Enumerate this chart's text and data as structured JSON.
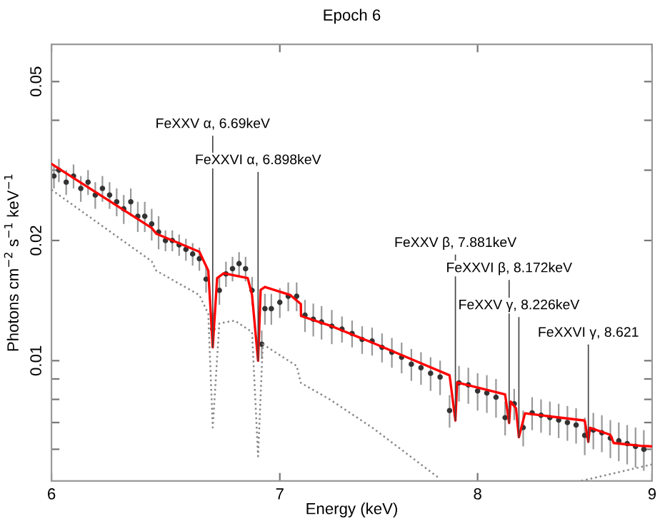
{
  "chart_data": {
    "type": "line",
    "title": "Epoch 6",
    "xlabel": "Energy (keV)",
    "ylabel": "Photons cm$^{−2}$ s$^{−1}$ keV$^{−1}$",
    "log": "xy",
    "grid": false,
    "legend": false,
    "xlim": [
      6,
      9
    ],
    "xticks": [
      6,
      7,
      8,
      9
    ],
    "ylim": [
      0.005,
      0.062
    ],
    "yticks": [
      {
        "value": 0.006,
        "label": null
      },
      {
        "value": 0.007,
        "label": null
      },
      {
        "value": 0.008,
        "label": null
      },
      {
        "value": 0.009,
        "label": null
      },
      0.01,
      0.02,
      {
        "value": 0.03,
        "label": null
      },
      {
        "value": 0.04,
        "label": null
      },
      0.05
    ],
    "series": [
      {
        "type": "scatter",
        "color": "#333333",
        "marker": "circle",
        "x": [
          6.01,
          6.03,
          6.06,
          6.09,
          6.12,
          6.15,
          6.18,
          6.21,
          6.24,
          6.27,
          6.3,
          6.33,
          6.36,
          6.39,
          6.42,
          6.45,
          6.48,
          6.51,
          6.54,
          6.57,
          6.6,
          6.63,
          6.66,
          6.69,
          6.72,
          6.75,
          6.78,
          6.81,
          6.84,
          6.87,
          6.915,
          6.93,
          6.96,
          7.0,
          7.04,
          7.08,
          7.12,
          7.16,
          7.2,
          7.25,
          7.3,
          7.35,
          7.4,
          7.45,
          7.5,
          7.55,
          7.6,
          7.65,
          7.7,
          7.75,
          7.8,
          7.85,
          7.9,
          7.95,
          8.0,
          8.05,
          8.1,
          8.15,
          8.2,
          8.25,
          8.3,
          8.35,
          8.4,
          8.45,
          8.5,
          8.55,
          8.6,
          8.65,
          8.7,
          8.75,
          8.8,
          8.85,
          8.9,
          8.95
        ],
        "values": [
          0.029,
          0.03,
          0.028,
          0.029,
          0.027,
          0.028,
          0.026,
          0.027,
          0.026,
          0.025,
          0.024,
          0.025,
          0.023,
          0.023,
          0.022,
          0.021,
          0.02,
          0.02,
          0.0195,
          0.019,
          0.0185,
          0.018,
          0.016,
          0.012,
          0.015,
          0.0165,
          0.017,
          0.0175,
          0.017,
          0.015,
          0.011,
          0.0135,
          0.0135,
          0.014,
          0.0145,
          0.0145,
          0.013,
          0.0127,
          0.0125,
          0.0122,
          0.012,
          0.0117,
          0.0113,
          0.0112,
          0.0108,
          0.0105,
          0.0102,
          0.0098,
          0.0096,
          0.0093,
          0.0091,
          0.0075,
          0.0088,
          0.0087,
          0.0084,
          0.0083,
          0.0081,
          0.0072,
          0.0078,
          0.0068,
          0.0074,
          0.0073,
          0.0072,
          0.0071,
          0.007,
          0.0069,
          0.0065,
          0.0067,
          0.0066,
          0.0064,
          0.0063,
          0.0062,
          0.0061,
          0.006
        ],
        "errors": [
          0.002,
          0.002,
          0.002,
          0.002,
          0.002,
          0.002,
          0.002,
          0.002,
          0.002,
          0.002,
          0.002,
          0.002,
          0.002,
          0.002,
          0.002,
          0.002,
          0.0012,
          0.0012,
          0.0012,
          0.0012,
          0.0012,
          0.0012,
          0.0012,
          0.0012,
          0.0012,
          0.0012,
          0.0012,
          0.0012,
          0.0012,
          0.0012,
          0.0009,
          0.0012,
          0.0012,
          0.0012,
          0.0012,
          0.0012,
          0.0012,
          0.0012,
          0.0012,
          0.0012,
          0.0009,
          0.0009,
          0.0009,
          0.0009,
          0.0009,
          0.0009,
          0.0009,
          0.0009,
          0.0009,
          0.0009,
          0.0009,
          0.0007,
          0.0009,
          0.0009,
          0.0009,
          0.0009,
          0.0009,
          0.0007,
          0.0007,
          0.0007,
          0.0007,
          0.0007,
          0.0007,
          0.0007,
          0.0007,
          0.0007,
          0.0007,
          0.0007,
          0.0007,
          0.0007,
          0.0007,
          0.0007,
          0.0007,
          0.0007
        ]
      },
      {
        "color": "#ff0000",
        "line_style": "solid",
        "x": [
          6.0,
          6.42,
          6.44,
          6.63,
          6.67,
          6.69,
          6.71,
          6.74,
          6.85,
          6.87,
          6.898,
          6.91,
          6.93,
          7.05,
          7.1,
          7.101,
          7.24,
          7.45,
          7.85,
          7.881,
          7.89,
          8.15,
          8.172,
          8.18,
          8.21,
          8.226,
          8.26,
          8.6,
          8.621,
          8.63,
          8.75,
          8.77,
          8.93,
          9.0
        ],
        "values": [
          0.0311,
          0.0215,
          0.0208,
          0.01874,
          0.0168,
          0.0108,
          0.0161,
          0.01655,
          0.0161,
          0.0146,
          0.01,
          0.01505,
          0.0153,
          0.0146,
          0.01386,
          0.01294,
          0.01225,
          0.0111,
          0.00919,
          0.00708,
          0.00882,
          0.00823,
          0.00698,
          0.0079,
          0.0076,
          0.00643,
          0.00738,
          0.00708,
          0.00626,
          0.00679,
          0.00652,
          0.00622,
          0.00612,
          0.0061
        ]
      },
      {
        "color": "#888888",
        "line_style": "dotted",
        "x": [
          6.0,
          6.42,
          6.44,
          6.63,
          6.67,
          6.69,
          6.72,
          6.79,
          6.87,
          6.898,
          6.92,
          7.08,
          7.1,
          7.24,
          7.45,
          7.79,
          7.85,
          8.58,
          9.0
        ],
        "values": [
          0.0268,
          0.01774,
          0.0168,
          0.0146,
          0.0131,
          0.0068,
          0.0124,
          0.0126,
          0.0118,
          0.00576,
          0.011,
          0.0097,
          0.0088,
          0.008,
          0.0068,
          0.0051,
          null,
          0.005,
          0.0055
        ]
      }
    ],
    "annotations": [
      {
        "text": "FeXXV α, 6.69keV",
        "x": 6.69,
        "y": 0.0108
      },
      {
        "text": "FeXXVI α, 6.898keV",
        "x": 6.898,
        "y": 0.01
      },
      {
        "text": "FeXXV β, 7.881keV",
        "x": 7.881,
        "y": 0.00708
      },
      {
        "text": "FeXXVI β, 8.172keV",
        "x": 8.172,
        "y": 0.00698
      },
      {
        "text": "FeXXV γ, 8.226keV",
        "x": 8.226,
        "y": 0.00643
      },
      {
        "text": "FeXXVI γ, 8.621",
        "x": 8.621,
        "y": 0.00626
      }
    ]
  }
}
